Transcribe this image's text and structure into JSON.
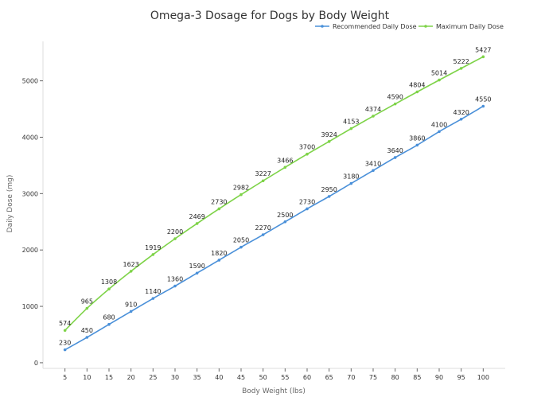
{
  "chart_data": {
    "type": "line",
    "title": "Omega-3 Dosage for Dogs by Body Weight",
    "xlabel": "Body Weight (lbs)",
    "ylabel": "Daily Dose (mg)",
    "x": [
      5,
      10,
      15,
      20,
      25,
      30,
      35,
      40,
      45,
      50,
      55,
      60,
      65,
      70,
      75,
      80,
      85,
      90,
      95,
      100
    ],
    "xlim": [
      0,
      105
    ],
    "ylim": [
      -100,
      5700
    ],
    "yticks": [
      0,
      1000,
      2000,
      3000,
      4000,
      5000
    ],
    "grid": false,
    "legend_position": "top-right",
    "series": [
      {
        "name": "Recommended Daily Dose",
        "color": "#4a90d9",
        "values": [
          230,
          450,
          680,
          910,
          1140,
          1360,
          1590,
          1820,
          2050,
          2270,
          2500,
          2730,
          2950,
          3180,
          3410,
          3640,
          3860,
          4100,
          4320,
          4550
        ]
      },
      {
        "name": "Maximum Daily Dose",
        "color": "#7ed348",
        "values": [
          574,
          965,
          1308,
          1623,
          1919,
          2200,
          2469,
          2730,
          2982,
          3227,
          3466,
          3700,
          3924,
          4153,
          4374,
          4590,
          4804,
          5014,
          5222,
          5427
        ]
      }
    ]
  }
}
